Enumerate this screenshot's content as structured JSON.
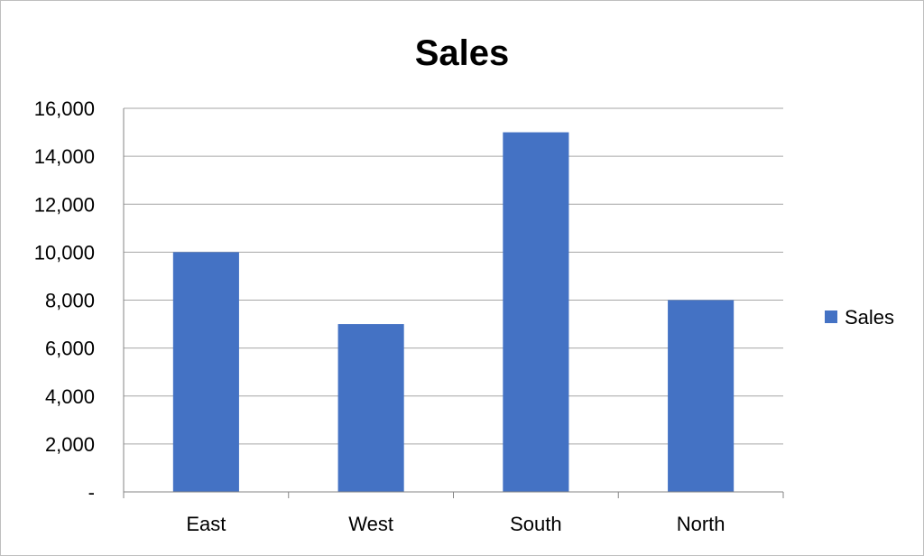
{
  "chart_data": {
    "type": "bar",
    "title": "Sales",
    "xlabel": "",
    "ylabel": "",
    "categories": [
      "East",
      "West",
      "South",
      "North"
    ],
    "series": [
      {
        "name": "Sales",
        "values": [
          10000,
          7000,
          15000,
          8000
        ],
        "color": "#4472C4"
      }
    ],
    "ylim": [
      0,
      16000
    ],
    "yticks": [
      0,
      2000,
      4000,
      6000,
      8000,
      10000,
      12000,
      14000,
      16000
    ],
    "ytick_labels": [
      "-",
      "2,000",
      "4,000",
      "6,000",
      "8,000",
      "10,000",
      "12,000",
      "14,000",
      "16,000"
    ],
    "grid": true,
    "legend_position": "right",
    "colors": {
      "gridline": "#a6a6a6",
      "axis": "#868686",
      "bar": "#4472C4"
    }
  }
}
